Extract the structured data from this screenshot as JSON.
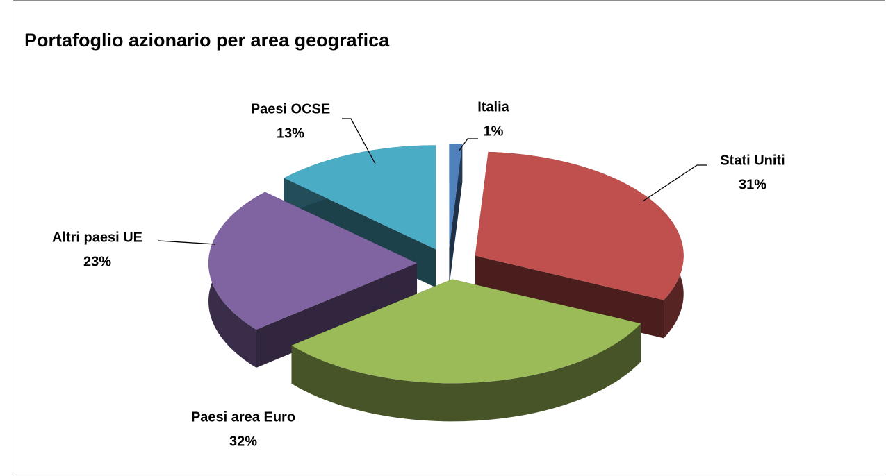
{
  "chart_data": {
    "type": "pie",
    "title": "Portafoglio azionario per area geografica",
    "categories": [
      "Italia",
      "Stati Uniti",
      "Paesi area Euro",
      "Altri paesi UE",
      "Paesi OCSE"
    ],
    "values": [
      1,
      31,
      32,
      23,
      13
    ],
    "value_labels": [
      "1%",
      "31%",
      "32%",
      "23%",
      "13%"
    ],
    "colors": [
      "#4f81bd",
      "#c0504d",
      "#9bbb59",
      "#8064a2",
      "#4bacc6"
    ]
  }
}
